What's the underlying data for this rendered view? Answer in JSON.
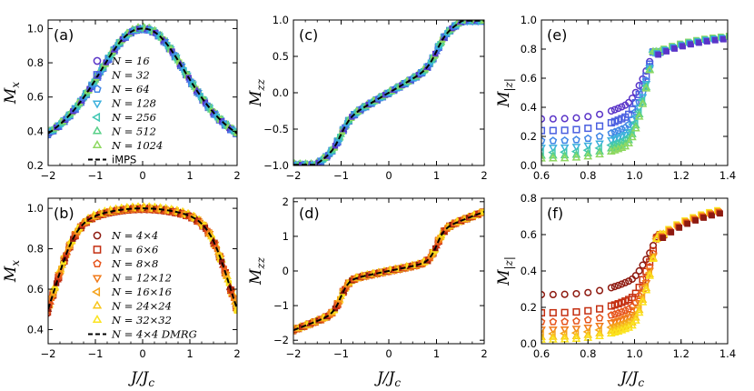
{
  "figure": {
    "xlabel": "J/J_c"
  },
  "colors": {
    "top": [
      "#5a34c8",
      "#4a5fe0",
      "#3f86e6",
      "#3cb0dc",
      "#40c6b3",
      "#58d088",
      "#8ed860"
    ],
    "bottom": [
      "#8e1a10",
      "#c42e10",
      "#e6541c",
      "#f07a1a",
      "#f5a21a",
      "#f8c51a",
      "#fbe31e"
    ],
    "exact": "#000000"
  },
  "chart_data": [
    {
      "id": "a",
      "panel_label": "(a)",
      "type": "scatter",
      "ylabel": "M_x",
      "xlim": [
        -2,
        2
      ],
      "ylim": [
        0.2,
        1.05
      ],
      "xticks": [
        "−2",
        "−1",
        "0",
        "1",
        "2"
      ],
      "yticks": [
        "0.2",
        "0.4",
        "0.6",
        "0.8",
        "1.0"
      ],
      "curve": "mx1d",
      "legend": "top",
      "legend_position": "center",
      "series": [
        {
          "name": "N = 16",
          "marker": "circle"
        },
        {
          "name": "N = 32",
          "marker": "square"
        },
        {
          "name": "N = 64",
          "marker": "pentagon"
        },
        {
          "name": "N = 128",
          "marker": "triangle-down"
        },
        {
          "name": "N = 256",
          "marker": "triangle-left"
        },
        {
          "name": "N = 512",
          "marker": "triangle-up"
        },
        {
          "name": "N = 1024",
          "marker": "triangle-right"
        },
        {
          "name": "iMPS",
          "marker": "dashed-line"
        }
      ]
    },
    {
      "id": "b",
      "panel_label": "(b)",
      "type": "scatter",
      "ylabel": "M_x",
      "xlim": [
        -2,
        2
      ],
      "ylim": [
        0.33,
        1.05
      ],
      "xticks": [
        "−2",
        "−1",
        "0",
        "1",
        "2"
      ],
      "yticks": [
        "0.4",
        "0.6",
        "0.8",
        "1.0"
      ],
      "curve": "mx2d",
      "legend": "bottom",
      "legend_position": "center",
      "series": [
        {
          "name": "N = 4×4",
          "marker": "circle"
        },
        {
          "name": "N = 6×6",
          "marker": "square"
        },
        {
          "name": "N = 8×8",
          "marker": "pentagon"
        },
        {
          "name": "N = 12×12",
          "marker": "triangle-down"
        },
        {
          "name": "N = 16×16",
          "marker": "triangle-left"
        },
        {
          "name": "N = 24×24",
          "marker": "triangle-up"
        },
        {
          "name": "N = 32×32",
          "marker": "triangle-right"
        },
        {
          "name": "N = 4×4 DMRG",
          "marker": "dashed-line"
        }
      ]
    },
    {
      "id": "c",
      "panel_label": "(c)",
      "type": "scatter",
      "ylabel": "M_zz",
      "xlim": [
        -2,
        2
      ],
      "ylim": [
        -1,
        1
      ],
      "xticks": [
        "−2",
        "−1",
        "0",
        "1",
        "2"
      ],
      "yticks": [
        "−1.0",
        "−0.5",
        "0.0",
        "0.5",
        "1.0"
      ],
      "curve": "mzz1d",
      "legend": "top"
    },
    {
      "id": "d",
      "panel_label": "(d)",
      "type": "scatter",
      "ylabel": "M_zz",
      "xlim": [
        -2,
        2
      ],
      "ylim": [
        -2.1,
        2.1
      ],
      "xticks": [
        "−2",
        "−1",
        "0",
        "1",
        "2"
      ],
      "yticks": [
        "−2",
        "−1",
        "0",
        "1",
        "2"
      ],
      "curve": "mzz2d",
      "legend": "bottom"
    },
    {
      "id": "e",
      "panel_label": "(e)",
      "type": "scatter",
      "ylabel": "M_|z|",
      "xlim": [
        0.6,
        1.4
      ],
      "ylim": [
        0,
        1
      ],
      "xticks": [
        "0.6",
        "0.8",
        "1.0",
        "1.2",
        "1.4"
      ],
      "yticks": [
        "0.0",
        "0.2",
        "0.4",
        "0.6",
        "0.8",
        "1.0"
      ],
      "curve": "mabs1d",
      "legend": "top",
      "plateau_values": [
        0.32,
        0.24,
        0.17,
        0.125,
        0.09,
        0.065,
        0.045
      ]
    },
    {
      "id": "f",
      "panel_label": "(f)",
      "type": "scatter",
      "ylabel": "M_|z|",
      "xlim": [
        0.6,
        1.4
      ],
      "ylim": [
        0,
        0.8
      ],
      "xticks": [
        "0.6",
        "0.8",
        "1.0",
        "1.2",
        "1.4"
      ],
      "yticks": [
        "0.0",
        "0.2",
        "0.4",
        "0.6",
        "0.8"
      ],
      "curve": "mabs2d",
      "legend": "bottom",
      "plateau_values": [
        0.27,
        0.17,
        0.12,
        0.08,
        0.055,
        0.035,
        0.02
      ]
    }
  ]
}
